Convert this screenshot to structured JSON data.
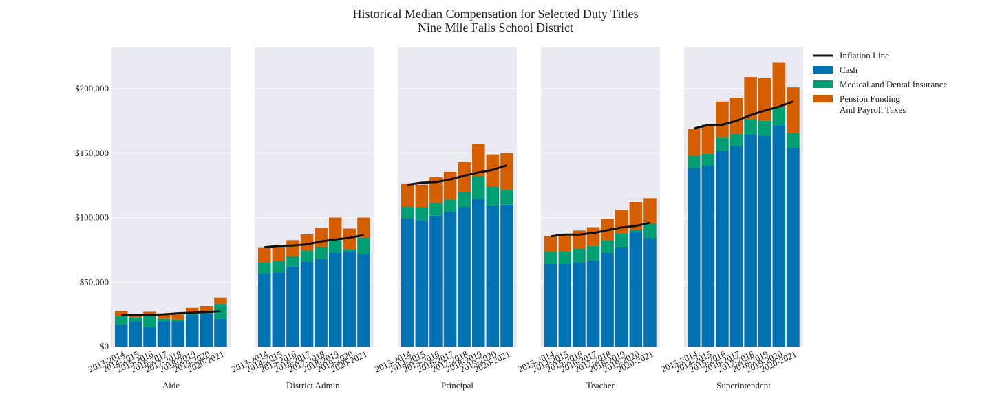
{
  "chart_data": {
    "type": "bar",
    "title_lines": [
      "Historical Median Compensation for Selected Duty Titles",
      "Nine Mile Falls School District"
    ],
    "ylim": [
      0,
      232000
    ],
    "yticks": [
      0,
      50000,
      100000,
      150000,
      200000
    ],
    "ytick_labels": [
      "$0",
      "$50,000",
      "$100,000",
      "$150,000",
      "$200,000"
    ],
    "grid": true,
    "legend_position": "right",
    "categories": [
      "2013-2014",
      "2014-2015",
      "2015-2016",
      "2016-2017",
      "2017-2018",
      "2018-2019",
      "2019-2020",
      "2020-2021"
    ],
    "legend": [
      {
        "key": "inflation",
        "label_lines": [
          "Inflation Line"
        ],
        "kind": "line",
        "color": "#111111"
      },
      {
        "key": "cash",
        "label_lines": [
          "Cash"
        ],
        "kind": "box",
        "color": "#0072b2"
      },
      {
        "key": "medical",
        "label_lines": [
          "Medical and Dental Insurance"
        ],
        "kind": "box",
        "color": "#009e73"
      },
      {
        "key": "pension",
        "label_lines": [
          "Pension Funding",
          "And Payroll Taxes"
        ],
        "kind": "box",
        "color": "#d55e00"
      }
    ],
    "panels": [
      {
        "name": "Aide",
        "cash": [
          17000,
          19500,
          15000,
          19500,
          19500,
          24500,
          25500,
          21500
        ],
        "medical": [
          6500,
          3000,
          9000,
          2000,
          1500,
          1000,
          1000,
          11500
        ],
        "pension": [
          4000,
          2500,
          3000,
          3000,
          4000,
          4500,
          5000,
          5000
        ],
        "inflation": [
          24200,
          24500,
          24600,
          25000,
          25800,
          26300,
          26700,
          27500
        ]
      },
      {
        "name": "District Admin.",
        "cash": [
          56500,
          57500,
          62000,
          66000,
          68000,
          73000,
          74000,
          72000
        ],
        "medical": [
          9000,
          9000,
          8000,
          8500,
          9500,
          9500,
          1500,
          12500
        ],
        "pension": [
          11500,
          11500,
          12500,
          12500,
          14500,
          17500,
          16000,
          15500
        ],
        "inflation": [
          77000,
          78000,
          78300,
          79200,
          81500,
          83000,
          84300,
          86500
        ]
      },
      {
        "name": "Principal",
        "cash": [
          99500,
          98000,
          101500,
          104500,
          108500,
          114500,
          109500,
          110000
        ],
        "medical": [
          9000,
          10000,
          10000,
          9500,
          11000,
          17500,
          14500,
          11500
        ],
        "pension": [
          18000,
          17500,
          20000,
          21500,
          23500,
          25000,
          25000,
          28500
        ],
        "inflation": [
          125500,
          127000,
          127500,
          129500,
          132500,
          135000,
          137000,
          140500
        ]
      },
      {
        "name": "Teacher",
        "cash": [
          64000,
          64000,
          65500,
          67000,
          73000,
          77500,
          88500,
          84000
        ],
        "medical": [
          9500,
          10000,
          10500,
          11000,
          9500,
          10000,
          2000,
          11500
        ],
        "pension": [
          12000,
          12000,
          14000,
          14500,
          16500,
          18500,
          21500,
          19500
        ],
        "inflation": [
          85500,
          86800,
          86800,
          88000,
          90200,
          92300,
          93500,
          96000
        ]
      },
      {
        "name": "Superintendent",
        "cash": [
          138500,
          140500,
          152000,
          155500,
          164500,
          163500,
          171500,
          154000
        ],
        "medical": [
          9500,
          9000,
          10000,
          9500,
          12000,
          11500,
          14000,
          11500
        ],
        "pension": [
          21000,
          22500,
          28000,
          28000,
          32500,
          33000,
          35000,
          35500
        ],
        "inflation": [
          169000,
          172000,
          172000,
          175000,
          179500,
          183000,
          186000,
          190000
        ]
      }
    ]
  }
}
